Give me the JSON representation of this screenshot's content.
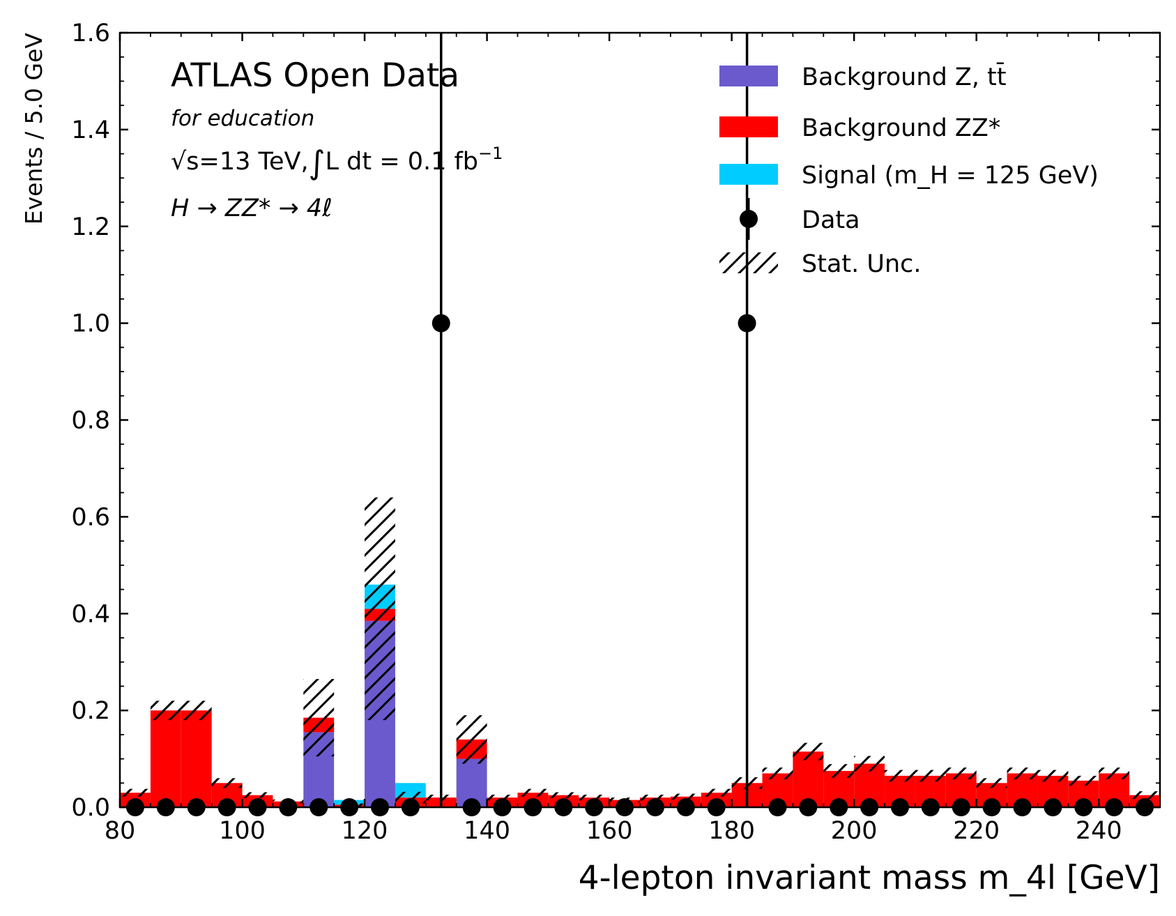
{
  "colors": {
    "bkg_z_tt": "#6a5acd",
    "bkg_zz": "#ff0000",
    "signal": "#00ccff",
    "data": "#000000",
    "stat_unc_hatch": "#000000"
  },
  "annotations": {
    "title": "ATLAS Open Data",
    "subtitle": "for education",
    "energy_prefix": "√s",
    "energy_text": "=13 TeV,",
    "lumi_text": "L dt = 0.1 fb",
    "lumi_exponent": "−1",
    "process_text": "H → ZZ* → 4ℓ"
  },
  "legend_labels": {
    "bkg_z_tt": "Background Z, tt̄",
    "bkg_zz": "Background ZZ*",
    "signal": "Signal (m_H = 125 GeV)",
    "data": "Data",
    "stat_unc": "Stat. Unc."
  },
  "chart_data": {
    "type": "bar",
    "stacked": true,
    "xlabel": "4-lepton invariant mass m_4l [GeV]",
    "ylabel": "Events / 5.0 GeV",
    "xlim": [
      80,
      250
    ],
    "ylim": [
      0,
      1.6
    ],
    "bin_width": 5,
    "x_ticks": [
      80,
      100,
      120,
      140,
      160,
      180,
      200,
      220,
      240
    ],
    "y_ticks": [
      0.0,
      0.2,
      0.4,
      0.6,
      0.8,
      1.0,
      1.2,
      1.4,
      1.6
    ],
    "y_tick_labels": [
      "0.0",
      "0.2",
      "0.4",
      "0.6",
      "0.8",
      "1.0",
      "1.2",
      "1.4",
      "1.6"
    ],
    "bin_centers": [
      82.5,
      87.5,
      92.5,
      97.5,
      102.5,
      107.5,
      112.5,
      117.5,
      122.5,
      127.5,
      132.5,
      137.5,
      142.5,
      147.5,
      152.5,
      157.5,
      162.5,
      167.5,
      172.5,
      177.5,
      182.5,
      187.5,
      192.5,
      197.5,
      202.5,
      207.5,
      212.5,
      217.5,
      222.5,
      227.5,
      232.5,
      237.5,
      242.5,
      247.5
    ],
    "series": [
      {
        "name": "Background Z, tt̄",
        "values": [
          0,
          0,
          0,
          0,
          0,
          0,
          0.155,
          0,
          0.385,
          0,
          0,
          0.1,
          0,
          0,
          0,
          0,
          0,
          0,
          0,
          0,
          0,
          0,
          0,
          0,
          0,
          0,
          0,
          0,
          0,
          0,
          0,
          0,
          0,
          0
        ]
      },
      {
        "name": "Background ZZ*",
        "values": [
          0.03,
          0.2,
          0.2,
          0.05,
          0.025,
          0.012,
          0.03,
          0.005,
          0.025,
          0.02,
          0.02,
          0.04,
          0.02,
          0.03,
          0.025,
          0.02,
          0.015,
          0.02,
          0.022,
          0.03,
          0.05,
          0.07,
          0.115,
          0.075,
          0.09,
          0.065,
          0.065,
          0.07,
          0.05,
          0.07,
          0.065,
          0.055,
          0.07,
          0.025
        ]
      },
      {
        "name": "Signal (m_H = 125 GeV)",
        "values": [
          0,
          0,
          0,
          0,
          0,
          0,
          0,
          0.01,
          0.05,
          0.03,
          0,
          0,
          0,
          0,
          0,
          0,
          0,
          0,
          0,
          0,
          0,
          0,
          0,
          0,
          0,
          0,
          0,
          0,
          0,
          0,
          0,
          0,
          0,
          0
        ]
      }
    ],
    "stat_unc": [
      0.008,
      0.02,
      0.02,
      0.01,
      0.006,
      0.004,
      0.08,
      0.003,
      0.23,
      0.012,
      0.006,
      0.05,
      0.006,
      0.008,
      0.006,
      0.006,
      0.005,
      0.006,
      0.006,
      0.008,
      0.012,
      0.012,
      0.018,
      0.014,
      0.016,
      0.012,
      0.012,
      0.012,
      0.01,
      0.012,
      0.012,
      0.01,
      0.012,
      0.008
    ],
    "data_points": {
      "name": "Data",
      "x": [
        82.5,
        87.5,
        92.5,
        97.5,
        102.5,
        107.5,
        112.5,
        117.5,
        122.5,
        127.5,
        132.5,
        137.5,
        142.5,
        147.5,
        152.5,
        157.5,
        162.5,
        167.5,
        172.5,
        177.5,
        182.5,
        187.5,
        192.5,
        197.5,
        202.5,
        207.5,
        212.5,
        217.5,
        222.5,
        227.5,
        232.5,
        237.5,
        242.5,
        247.5
      ],
      "y": [
        0,
        0,
        0,
        0,
        0,
        0,
        0,
        0,
        0,
        0,
        1,
        0,
        0,
        0,
        0,
        0,
        0,
        0,
        0,
        0,
        1,
        0,
        0,
        0,
        0,
        0,
        0,
        0,
        0,
        0,
        0,
        0,
        0,
        0
      ],
      "yerr": [
        0,
        0,
        0,
        0,
        0,
        0,
        0,
        0,
        0,
        0,
        1,
        0,
        0,
        0,
        0,
        0,
        0,
        0,
        0,
        0,
        1,
        0,
        0,
        0,
        0,
        0,
        0,
        0,
        0,
        0,
        0,
        0,
        0,
        0
      ]
    },
    "legend_position": "top-right",
    "grid": false
  }
}
